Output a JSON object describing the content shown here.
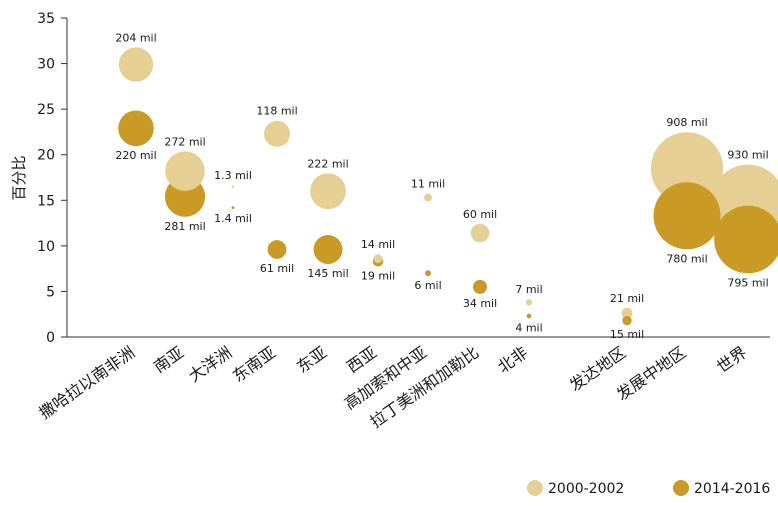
{
  "chart_data": {
    "type": "scatter",
    "ylabel": "百分比",
    "ylim": [
      0,
      35
    ],
    "yticks": [
      0,
      5,
      10,
      15,
      20,
      25,
      30,
      35
    ],
    "categories": [
      [
        "撒哈拉以南非洲"
      ],
      [
        "南亚"
      ],
      [
        "大洋洲"
      ],
      [
        "东南亚"
      ],
      [
        "东亚"
      ],
      [
        "西亚"
      ],
      [
        "高加索和中亚"
      ],
      [
        "拉丁美洲和加勒比"
      ],
      [
        "北非"
      ],
      [
        "发达地区"
      ],
      [
        "发展中地区"
      ],
      [
        "世界"
      ]
    ],
    "series": [
      {
        "name": "2000-2002",
        "color": "#e6cf95",
        "points": [
          {
            "x": "撒哈拉以南非洲",
            "y": 29.9,
            "size": 204,
            "label": "204 mil"
          },
          {
            "x": "南亚",
            "y": 18.2,
            "size": 272,
            "label": "272 mil"
          },
          {
            "x": "大洋洲",
            "y": 16.5,
            "size": 1.3,
            "label": "1.3 mil"
          },
          {
            "x": "东南亚",
            "y": 22.3,
            "size": 118,
            "label": "118 mil"
          },
          {
            "x": "东亚",
            "y": 16.0,
            "size": 222,
            "label": "222 mil"
          },
          {
            "x": "西亚",
            "y": 8.6,
            "size": 14,
            "label": "14 mil"
          },
          {
            "x": "高加索和中亚",
            "y": 15.3,
            "size": 11,
            "label": "11 mil"
          },
          {
            "x": "拉丁美洲和加勒比",
            "y": 11.4,
            "size": 60,
            "label": "60 mil"
          },
          {
            "x": "北非",
            "y": 3.8,
            "size": 7,
            "label": "7 mil"
          },
          {
            "x": "发达地区",
            "y": 2.6,
            "size": 21,
            "label": "21 mil"
          },
          {
            "x": "发展中地区",
            "y": 18.5,
            "size": 908,
            "label": "908 mil"
          },
          {
            "x": "世界",
            "y": 14.9,
            "size": 930,
            "label": "930 mil"
          }
        ]
      },
      {
        "name": "2014-2016",
        "color": "#c99a24",
        "points": [
          {
            "x": "撒哈拉以南非洲",
            "y": 22.9,
            "size": 220,
            "label": "220 mil"
          },
          {
            "x": "南亚",
            "y": 15.4,
            "size": 281,
            "label": "281 mil"
          },
          {
            "x": "大洋洲",
            "y": 14.2,
            "size": 1.4,
            "label": "1.4 mil"
          },
          {
            "x": "东南亚",
            "y": 9.6,
            "size": 61,
            "label": "61 mil"
          },
          {
            "x": "东亚",
            "y": 9.6,
            "size": 145,
            "label": "145 mil"
          },
          {
            "x": "西亚",
            "y": 8.3,
            "size": 19,
            "label": "19 mil"
          },
          {
            "x": "高加索和中亚",
            "y": 7.0,
            "size": 6,
            "label": "6 mil"
          },
          {
            "x": "拉丁美洲和加勒比",
            "y": 5.5,
            "size": 34,
            "label": "34 mil"
          },
          {
            "x": "北非",
            "y": 2.3,
            "size": 4,
            "label": "4 mil"
          },
          {
            "x": "发达地区",
            "y": 1.8,
            "size": 15,
            "label": "15 mil"
          },
          {
            "x": "发展中地区",
            "y": 13.3,
            "size": 780,
            "label": "780 mil"
          },
          {
            "x": "世界",
            "y": 10.7,
            "size": 795,
            "label": "795 mil"
          }
        ]
      }
    ],
    "legend": {
      "position": "bottom-right",
      "entries": [
        "2000-2002",
        "2014-2016"
      ]
    },
    "grid": false
  }
}
